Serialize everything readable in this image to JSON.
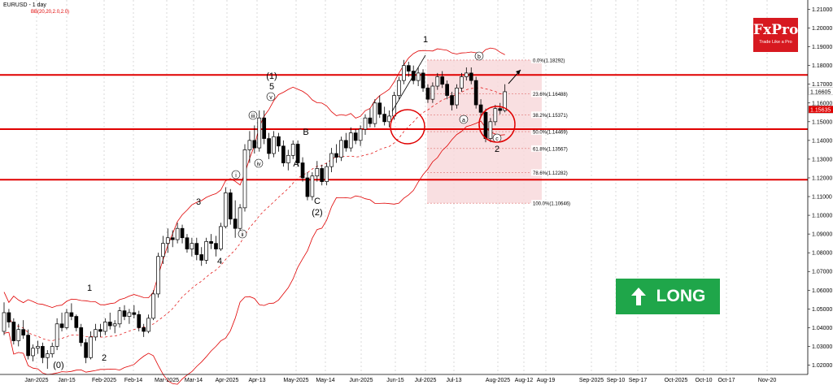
{
  "header": {
    "symbol": "EURUSD - 1 day",
    "indicator": "BB(20,20,2.0,2.0)"
  },
  "logo": {
    "brand": "FxPro",
    "tagline": "Trade Like a Pro",
    "bg": "#d71920"
  },
  "badge": {
    "label": "LONG",
    "color": "#1fa64a"
  },
  "colors": {
    "bull": "#000000",
    "bear": "#000000",
    "band": "#e00000",
    "level": "#e00000",
    "zone": "#f8d9dc"
  },
  "chart_data": {
    "type": "candlestick",
    "ylim": [
      1.015,
      1.215
    ],
    "price_ticks": [
      "1.21000",
      "1.20000",
      "1.19000",
      "1.18000",
      "1.17000",
      "1.16000",
      "1.15000",
      "1.14000",
      "1.13000",
      "1.12000",
      "1.11000",
      "1.10000",
      "1.09000",
      "1.08000",
      "1.07000",
      "1.06000",
      "1.05000",
      "1.04000",
      "1.03000",
      "1.02000"
    ],
    "time_ticks": [
      "Jan-2025",
      "Jan-15",
      "Feb-2025",
      "Feb-14",
      "Mar-2025",
      "Mar-14",
      "Apr-2025",
      "Apr-13",
      "May-2025",
      "May-14",
      "Jun-2025",
      "Jun-15",
      "Jul-2025",
      "Jul-13",
      "Aug-2025",
      "Aug-12",
      "Aug-19",
      "Sep-2025",
      "Sep-10",
      "Sep-17",
      "Oct-2025",
      "Oct-10",
      "Oct-17",
      "Nov-20"
    ],
    "last_price": {
      "value": 1.16605,
      "label": "1.16605"
    },
    "marker_price": {
      "value": 1.15635,
      "label": "1.15635"
    },
    "horizontal_levels": [
      1.175,
      1.146,
      1.119
    ],
    "fibonacci": [
      {
        "label": "0.0%(1.18292)",
        "value": 1.18292
      },
      {
        "label": "23.6%(1.16488)",
        "value": 1.16488
      },
      {
        "label": "38.2%(1.15371)",
        "value": 1.15371
      },
      {
        "label": "50.0%(1.14469)",
        "value": 1.14469
      },
      {
        "label": "61.8%(1.13567)",
        "value": 1.13567
      },
      {
        "label": "78.6%(1.12282)",
        "value": 1.12282
      },
      {
        "label": "100.0%(1.10646)",
        "value": 1.10646
      }
    ],
    "wave_labels": [
      "(0)",
      "1",
      "2",
      "3",
      "4",
      "(1)",
      "5",
      "A",
      "B",
      "C",
      "(2)",
      "1",
      "2",
      "i",
      "ii",
      "iii",
      "iv",
      "v",
      "a",
      "b",
      "c"
    ],
    "candles": [
      [
        1.038,
        1.0535,
        1.036,
        1.048
      ],
      [
        1.048,
        1.05,
        1.04,
        1.043
      ],
      [
        1.043,
        1.045,
        1.031,
        1.033
      ],
      [
        1.033,
        1.042,
        1.03,
        1.039
      ],
      [
        1.039,
        1.044,
        1.034,
        1.036
      ],
      [
        1.036,
        1.039,
        1.023,
        1.025
      ],
      [
        1.025,
        1.031,
        1.022,
        1.029
      ],
      [
        1.029,
        1.033,
        1.026,
        1.03
      ],
      [
        1.03,
        1.032,
        1.021,
        1.024
      ],
      [
        1.024,
        1.028,
        1.018,
        1.026
      ],
      [
        1.026,
        1.032,
        1.024,
        1.03
      ],
      [
        1.03,
        1.045,
        1.028,
        1.042
      ],
      [
        1.042,
        1.048,
        1.038,
        1.04
      ],
      [
        1.04,
        1.05,
        1.039,
        1.048
      ],
      [
        1.048,
        1.053,
        1.044,
        1.046
      ],
      [
        1.046,
        1.047,
        1.038,
        1.04
      ],
      [
        1.04,
        1.042,
        1.03,
        1.032
      ],
      [
        1.032,
        1.034,
        1.021,
        1.024
      ],
      [
        1.024,
        1.038,
        1.023,
        1.035
      ],
      [
        1.035,
        1.042,
        1.033,
        1.039
      ],
      [
        1.039,
        1.042,
        1.035,
        1.038
      ],
      [
        1.038,
        1.045,
        1.036,
        1.043
      ],
      [
        1.043,
        1.048,
        1.039,
        1.041
      ],
      [
        1.041,
        1.044,
        1.037,
        1.042
      ],
      [
        1.042,
        1.051,
        1.04,
        1.049
      ],
      [
        1.049,
        1.052,
        1.044,
        1.046
      ],
      [
        1.046,
        1.05,
        1.042,
        1.048
      ],
      [
        1.048,
        1.052,
        1.045,
        1.047
      ],
      [
        1.047,
        1.049,
        1.038,
        1.04
      ],
      [
        1.04,
        1.042,
        1.035,
        1.038
      ],
      [
        1.038,
        1.047,
        1.037,
        1.045
      ],
      [
        1.045,
        1.06,
        1.044,
        1.058
      ],
      [
        1.058,
        1.08,
        1.056,
        1.078
      ],
      [
        1.078,
        1.089,
        1.074,
        1.085
      ],
      [
        1.085,
        1.093,
        1.08,
        1.088
      ],
      [
        1.088,
        1.092,
        1.083,
        1.087
      ],
      [
        1.087,
        1.096,
        1.085,
        1.093
      ],
      [
        1.093,
        1.095,
        1.085,
        1.088
      ],
      [
        1.088,
        1.09,
        1.08,
        1.082
      ],
      [
        1.082,
        1.088,
        1.078,
        1.085
      ],
      [
        1.085,
        1.088,
        1.076,
        1.079
      ],
      [
        1.079,
        1.083,
        1.073,
        1.076
      ],
      [
        1.076,
        1.088,
        1.074,
        1.086
      ],
      [
        1.086,
        1.09,
        1.082,
        1.085
      ],
      [
        1.085,
        1.089,
        1.078,
        1.082
      ],
      [
        1.082,
        1.096,
        1.081,
        1.094
      ],
      [
        1.094,
        1.115,
        1.093,
        1.112
      ],
      [
        1.112,
        1.114,
        1.095,
        1.098
      ],
      [
        1.098,
        1.108,
        1.088,
        1.093
      ],
      [
        1.093,
        1.106,
        1.091,
        1.104
      ],
      [
        1.104,
        1.138,
        1.102,
        1.135
      ],
      [
        1.135,
        1.145,
        1.128,
        1.14
      ],
      [
        1.14,
        1.148,
        1.133,
        1.136
      ],
      [
        1.136,
        1.156,
        1.134,
        1.152
      ],
      [
        1.152,
        1.156,
        1.138,
        1.141
      ],
      [
        1.141,
        1.144,
        1.13,
        1.133
      ],
      [
        1.133,
        1.145,
        1.131,
        1.142
      ],
      [
        1.142,
        1.144,
        1.134,
        1.137
      ],
      [
        1.137,
        1.14,
        1.126,
        1.128
      ],
      [
        1.128,
        1.135,
        1.124,
        1.132
      ],
      [
        1.132,
        1.14,
        1.13,
        1.138
      ],
      [
        1.138,
        1.14,
        1.126,
        1.128
      ],
      [
        1.128,
        1.131,
        1.118,
        1.12
      ],
      [
        1.12,
        1.123,
        1.108,
        1.11
      ],
      [
        1.11,
        1.123,
        1.108,
        1.121
      ],
      [
        1.121,
        1.129,
        1.118,
        1.125
      ],
      [
        1.125,
        1.127,
        1.116,
        1.118
      ],
      [
        1.118,
        1.128,
        1.116,
        1.126
      ],
      [
        1.126,
        1.136,
        1.123,
        1.133
      ],
      [
        1.133,
        1.138,
        1.128,
        1.131
      ],
      [
        1.131,
        1.142,
        1.129,
        1.14
      ],
      [
        1.14,
        1.144,
        1.134,
        1.136
      ],
      [
        1.136,
        1.147,
        1.134,
        1.144
      ],
      [
        1.144,
        1.146,
        1.138,
        1.14
      ],
      [
        1.14,
        1.148,
        1.137,
        1.146
      ],
      [
        1.146,
        1.154,
        1.143,
        1.152
      ],
      [
        1.152,
        1.157,
        1.147,
        1.149
      ],
      [
        1.149,
        1.162,
        1.147,
        1.16
      ],
      [
        1.16,
        1.164,
        1.152,
        1.154
      ],
      [
        1.154,
        1.158,
        1.148,
        1.15
      ],
      [
        1.15,
        1.156,
        1.147,
        1.153
      ],
      [
        1.153,
        1.166,
        1.151,
        1.164
      ],
      [
        1.164,
        1.174,
        1.162,
        1.172
      ],
      [
        1.172,
        1.183,
        1.17,
        1.18
      ],
      [
        1.18,
        1.182,
        1.174,
        1.177
      ],
      [
        1.177,
        1.18,
        1.17,
        1.172
      ],
      [
        1.172,
        1.179,
        1.169,
        1.176
      ],
      [
        1.176,
        1.178,
        1.166,
        1.168
      ],
      [
        1.168,
        1.17,
        1.16,
        1.162
      ],
      [
        1.162,
        1.171,
        1.16,
        1.169
      ],
      [
        1.169,
        1.176,
        1.167,
        1.174
      ],
      [
        1.174,
        1.177,
        1.168,
        1.17
      ],
      [
        1.17,
        1.172,
        1.162,
        1.164
      ],
      [
        1.164,
        1.166,
        1.156,
        1.159
      ],
      [
        1.159,
        1.17,
        1.157,
        1.168
      ],
      [
        1.168,
        1.176,
        1.166,
        1.174
      ],
      [
        1.174,
        1.179,
        1.172,
        1.176
      ],
      [
        1.176,
        1.179,
        1.17,
        1.172
      ],
      [
        1.172,
        1.174,
        1.157,
        1.159
      ],
      [
        1.159,
        1.162,
        1.152,
        1.155
      ],
      [
        1.155,
        1.157,
        1.139,
        1.141
      ],
      [
        1.141,
        1.152,
        1.139,
        1.15
      ],
      [
        1.15,
        1.159,
        1.148,
        1.157
      ],
      [
        1.157,
        1.16,
        1.154,
        1.156
      ],
      [
        1.156,
        1.17,
        1.155,
        1.166
      ]
    ]
  }
}
